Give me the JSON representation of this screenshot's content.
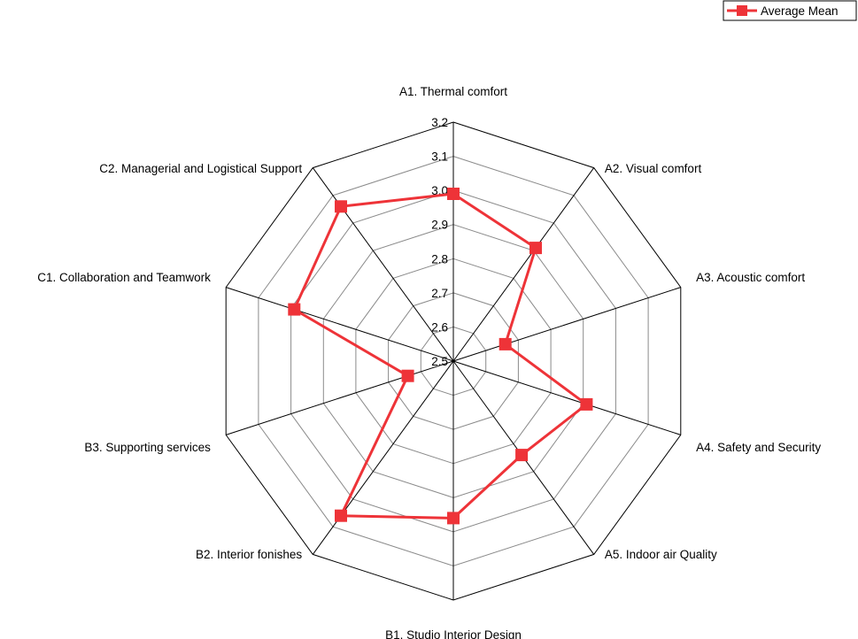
{
  "chart_data": {
    "type": "radar",
    "categories": [
      "A1. Thermal comfort",
      "A2. Visual comfort",
      "A3. Acoustic comfort",
      "A4. Safety and Security",
      "A5. Indoor air Quality",
      "B1. Studio Interior Design",
      "B2. Interior fonishes",
      "B3. Supporting services",
      "C1. Collaboration and Teamwork",
      "C2. Managerial and Logistical Support"
    ],
    "series": [
      {
        "name": "Average Mean",
        "values": [
          2.99,
          2.91,
          2.66,
          2.91,
          2.84,
          2.96,
          3.06,
          2.64,
          2.99,
          3.06
        ],
        "color": "#ee3338"
      }
    ],
    "rlim": [
      2.5,
      3.2
    ],
    "ticks": [
      "2.5",
      "2.6",
      "2.7",
      "2.8",
      "2.9",
      "3.0",
      "3.1",
      "3.2"
    ],
    "grid": true,
    "legend_position": "top-right"
  }
}
